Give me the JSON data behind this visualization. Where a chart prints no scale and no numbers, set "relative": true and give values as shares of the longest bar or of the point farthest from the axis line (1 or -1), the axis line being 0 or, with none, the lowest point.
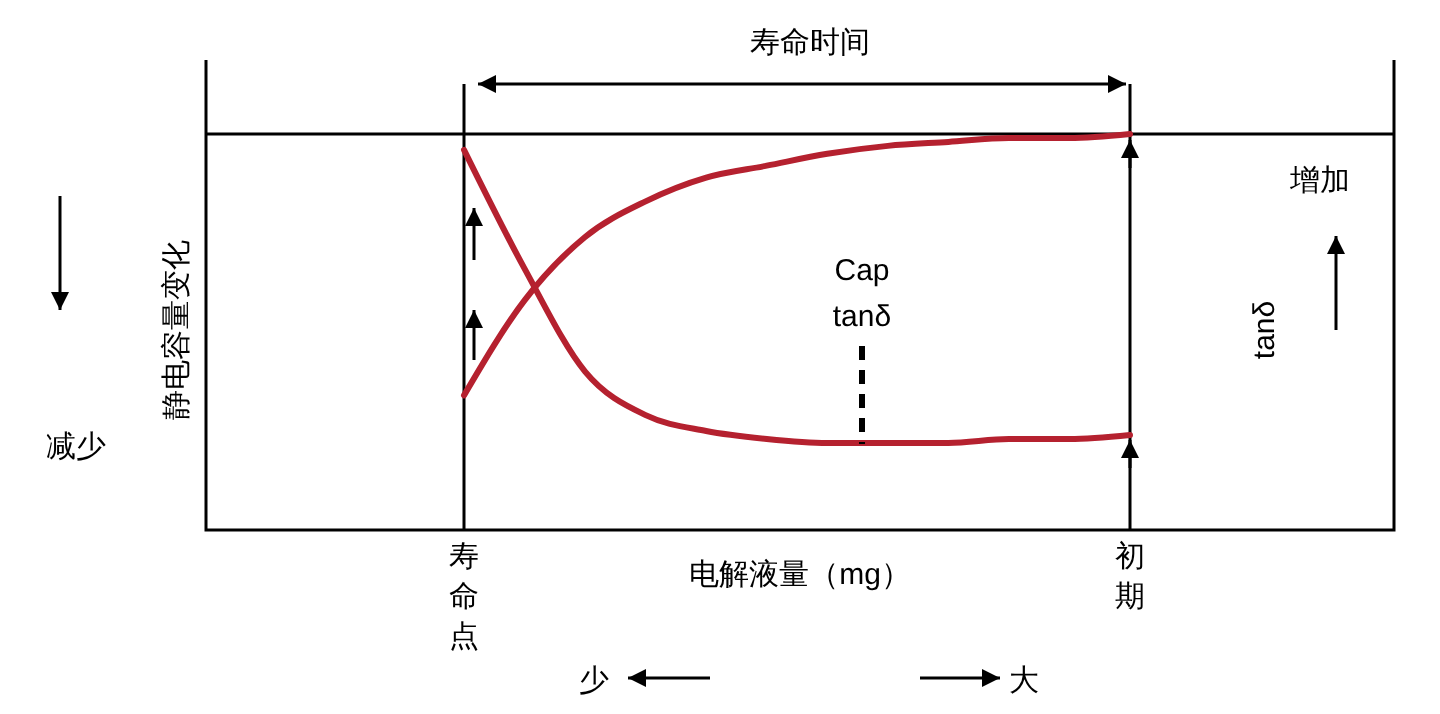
{
  "chart_data": {
    "type": "line",
    "relative": true,
    "xlabel": "电解液量（mg）",
    "y2label": "tanδ",
    "categories": [
      "寿命点",
      null,
      null,
      null,
      null,
      null,
      null,
      null,
      null,
      null,
      null,
      "初期"
    ],
    "series": [
      {
        "color": "#b5212f",
        "values": [
          0.34,
          0.58,
          0.74,
          0.83,
          0.89,
          0.92,
          0.95,
          0.97,
          0.98,
          0.99,
          0.99,
          1
        ]
      },
      {
        "color": "#b5212f",
        "values": [
          0.96,
          0.66,
          0.4,
          0.29,
          0.25,
          0.23,
          0.22,
          0.22,
          0.22,
          0.23,
          0.23,
          0.24
        ]
      }
    ],
    "ref_lines": [
      {
        "axis": "x",
        "value": "寿命点",
        "color": "#000000"
      },
      {
        "axis": "x",
        "value": "初期",
        "color": "#000000"
      }
    ],
    "annotations": [
      "寿命时间",
      "Cap",
      "tanδ",
      "减少",
      "增加",
      "少",
      "大",
      "静电容量变化"
    ],
    "marker": "none",
    "line_style": "solid"
  }
}
